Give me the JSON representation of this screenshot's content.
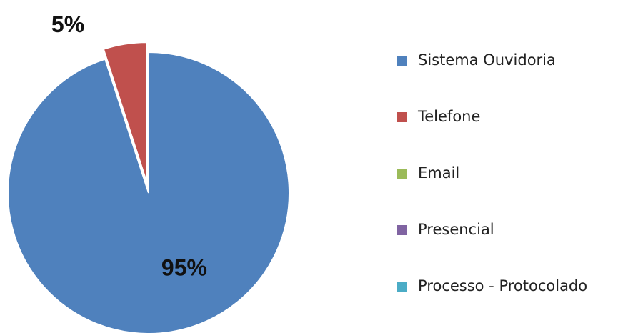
{
  "chart_data": {
    "type": "pie",
    "categories": [
      "Sistema Ouvidoria",
      "Telefone",
      "Email",
      "Presencial",
      "Processo - Protocolado"
    ],
    "values": [
      95,
      5,
      0,
      0,
      0
    ],
    "value_labels": [
      "95%",
      "5%",
      null,
      null,
      null
    ],
    "colors": [
      "#4f81bd",
      "#c0504d",
      "#9bbb59",
      "#8064a2",
      "#4bacc6"
    ],
    "legend": "right"
  }
}
